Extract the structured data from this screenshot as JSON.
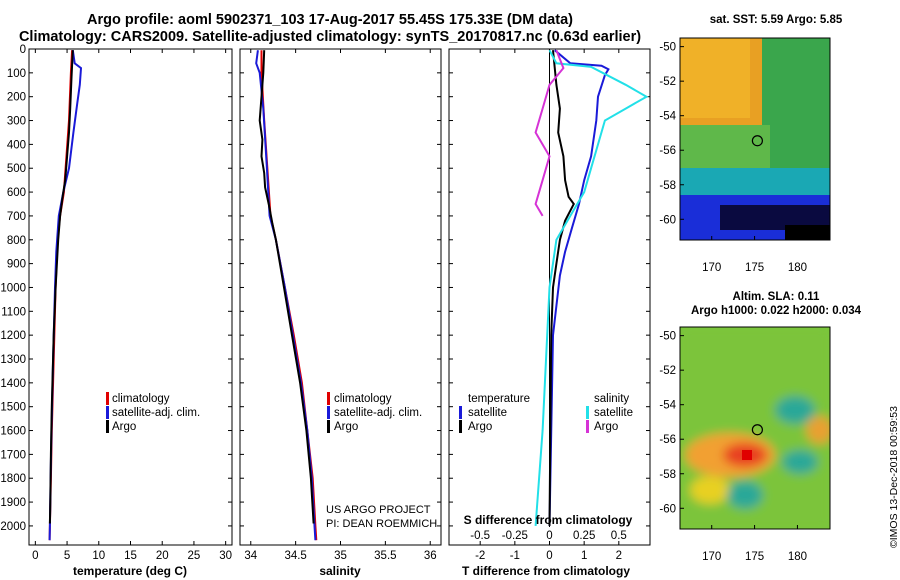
{
  "title_line1": "Argo profile: aoml 5902371_103 17-Aug-2017 55.45S 175.33E (DM data)",
  "title_line2": "Climatology: CARS2009. Satellite-adjusted climatology: synTS_20170817.nc (0.63d earlier)",
  "map_sst_title": "sat. SST: 5.59 Argo: 5.85",
  "map_sla_title1": "Altim. SLA: 0.11",
  "map_sla_title2": "Argo h1000: 0.022 h2000: 0.034",
  "credit_line1": "US ARGO PROJECT",
  "credit_line2": "PI: DEAN ROEMMICH",
  "timestamp": "©IMOS 13-Dec-2018 00:59:53",
  "colors": {
    "climatology": "#e00000",
    "satellite": "#1a1ad8",
    "argo": "#000000",
    "argo_s": "#d633d6",
    "sat_s": "#22e0e8"
  },
  "chart_data": [
    {
      "type": "line",
      "id": "temperature",
      "xlabel": "temperature (deg C)",
      "ylabel": "",
      "xlim": [
        -1,
        31
      ],
      "ylim": [
        2080,
        0
      ],
      "xticks": [
        0,
        5,
        10,
        15,
        20,
        25,
        30
      ],
      "yticks": [
        0,
        100,
        200,
        300,
        400,
        500,
        600,
        700,
        800,
        900,
        1000,
        1100,
        1200,
        1300,
        1400,
        1500,
        1600,
        1700,
        1800,
        1900,
        2000
      ],
      "legend": [
        "climatology",
        "satellite-adj. clim.",
        "Argo"
      ],
      "series": [
        {
          "name": "climatology",
          "points": [
            [
              5.8,
              5
            ],
            [
              5.6,
              100
            ],
            [
              5.3,
              300
            ],
            [
              4.5,
              600
            ],
            [
              3.9,
              700
            ],
            [
              3.5,
              800
            ],
            [
              3.2,
              1000
            ],
            [
              2.9,
              1300
            ],
            [
              2.6,
              1600
            ],
            [
              2.45,
              1800
            ],
            [
              2.3,
              2000
            ],
            [
              2.25,
              2060
            ]
          ]
        },
        {
          "name": "satellite-adj. clim.",
          "points": [
            [
              5.9,
              5
            ],
            [
              6.2,
              60
            ],
            [
              7.2,
              80
            ],
            [
              7.0,
              150
            ],
            [
              6.6,
              230
            ],
            [
              6.0,
              350
            ],
            [
              5.3,
              500
            ],
            [
              4.4,
              600
            ],
            [
              3.7,
              700
            ],
            [
              3.3,
              850
            ],
            [
              3.1,
              1000
            ],
            [
              2.8,
              1300
            ],
            [
              2.55,
              1600
            ],
            [
              2.4,
              1800
            ],
            [
              2.3,
              2000
            ],
            [
              2.25,
              2060
            ]
          ]
        },
        {
          "name": "Argo",
          "points": [
            [
              5.9,
              5
            ],
            [
              5.7,
              120
            ],
            [
              5.5,
              250
            ],
            [
              5.3,
              350
            ],
            [
              5.0,
              450
            ],
            [
              4.7,
              550
            ],
            [
              4.3,
              620
            ],
            [
              3.9,
              700
            ],
            [
              3.6,
              800
            ],
            [
              3.2,
              1000
            ],
            [
              2.9,
              1200
            ],
            [
              2.6,
              1500
            ],
            [
              2.45,
              1700
            ],
            [
              2.35,
              1900
            ],
            [
              2.3,
              1990
            ]
          ]
        }
      ]
    },
    {
      "type": "line",
      "id": "salinity",
      "xlabel": "salinity",
      "ylabel": "",
      "xlim": [
        33.88,
        36.12
      ],
      "ylim": [
        2080,
        0
      ],
      "xticks": [
        34,
        34.5,
        35,
        35.5,
        36
      ],
      "xticklabels": [
        "34",
        "34.5",
        "35",
        "35.5",
        "36"
      ],
      "legend": [
        "climatology",
        "satellite-adj. clim.",
        "Argo"
      ],
      "series": [
        {
          "name": "climatology",
          "points": [
            [
              34.12,
              5
            ],
            [
              34.12,
              100
            ],
            [
              34.15,
              300
            ],
            [
              34.22,
              700
            ],
            [
              34.28,
              800
            ],
            [
              34.38,
              1000
            ],
            [
              34.48,
              1200
            ],
            [
              34.57,
              1400
            ],
            [
              34.63,
              1600
            ],
            [
              34.69,
              1800
            ],
            [
              34.72,
              2000
            ],
            [
              34.73,
              2060
            ]
          ]
        },
        {
          "name": "satellite-adj. clim.",
          "points": [
            [
              34.08,
              5
            ],
            [
              34.06,
              60
            ],
            [
              34.1,
              100
            ],
            [
              34.14,
              250
            ],
            [
              34.18,
              500
            ],
            [
              34.21,
              700
            ],
            [
              34.28,
              800
            ],
            [
              34.38,
              1000
            ],
            [
              34.47,
              1200
            ],
            [
              34.56,
              1400
            ],
            [
              34.63,
              1600
            ],
            [
              34.68,
              1800
            ],
            [
              34.71,
              2000
            ],
            [
              34.72,
              2060
            ]
          ]
        },
        {
          "name": "Argo",
          "points": [
            [
              34.15,
              5
            ],
            [
              34.14,
              100
            ],
            [
              34.12,
              200
            ],
            [
              34.1,
              300
            ],
            [
              34.13,
              380
            ],
            [
              34.12,
              450
            ],
            [
              34.15,
              520
            ],
            [
              34.16,
              580
            ],
            [
              34.2,
              650
            ],
            [
              34.24,
              730
            ],
            [
              34.28,
              800
            ],
            [
              34.37,
              1000
            ],
            [
              34.46,
              1200
            ],
            [
              34.55,
              1400
            ],
            [
              34.62,
              1600
            ],
            [
              34.67,
              1800
            ],
            [
              34.7,
              1990
            ]
          ]
        }
      ]
    },
    {
      "type": "line",
      "id": "difference",
      "xlabel": "T difference from climatology",
      "xlabel2": "S difference from climatology",
      "xlim": [
        -2.9,
        2.9
      ],
      "ylim": [
        2080,
        0
      ],
      "xticks": [
        -2,
        -1,
        0,
        1,
        2
      ],
      "xticks2": [
        -0.5,
        -0.25,
        0,
        0.25,
        0.5
      ],
      "xticklabels2": [
        "-0.5",
        "-0.25",
        "0",
        "0.25",
        "0.5"
      ],
      "legend_left_title": "temperature",
      "legend_right_title": "salinity",
      "legend_left": [
        "satellite",
        "Argo"
      ],
      "legend_right": [
        "satellite",
        "Argo"
      ],
      "series": [
        {
          "name": "temperature satellite",
          "points": [
            [
              0.15,
              5
            ],
            [
              0.6,
              60
            ],
            [
              1.5,
              70
            ],
            [
              1.7,
              85
            ],
            [
              1.6,
              110
            ],
            [
              1.4,
              200
            ],
            [
              1.35,
              300
            ],
            [
              1.2,
              450
            ],
            [
              1.0,
              550
            ],
            [
              0.85,
              650
            ],
            [
              0.65,
              750
            ],
            [
              0.45,
              850
            ],
            [
              0.3,
              950
            ],
            [
              0.1,
              1200
            ],
            [
              0,
              2000
            ]
          ]
        },
        {
          "name": "temperature Argo",
          "points": [
            [
              0.1,
              5
            ],
            [
              0.2,
              150
            ],
            [
              0.3,
              250
            ],
            [
              0.25,
              350
            ],
            [
              0.4,
              450
            ],
            [
              0.45,
              550
            ],
            [
              0.55,
              620
            ],
            [
              0.7,
              650
            ],
            [
              0.45,
              720
            ],
            [
              0.3,
              800
            ],
            [
              0.2,
              900
            ],
            [
              0.1,
              1000
            ],
            [
              0.05,
              1200
            ],
            [
              0,
              2000
            ]
          ]
        },
        {
          "name": "salinity satellite",
          "points": [
            [
              0,
              5
            ],
            [
              0.05,
              60
            ],
            [
              0.3,
              75
            ],
            [
              0.55,
              150
            ],
            [
              0.7,
              200
            ],
            [
              0.55,
              250
            ],
            [
              0.4,
              300
            ],
            [
              0.35,
              400
            ],
            [
              0.3,
              500
            ],
            [
              0.25,
              600
            ],
            [
              0.15,
              700
            ],
            [
              0.05,
              800
            ],
            [
              0,
              1000
            ],
            [
              -0.05,
              1600
            ],
            [
              -0.1,
              2000
            ]
          ]
        },
        {
          "name": "salinity Argo",
          "points": [
            [
              0.05,
              5
            ],
            [
              0.1,
              80
            ],
            [
              0.0,
              150
            ],
            [
              -0.05,
              250
            ],
            [
              -0.1,
              350
            ],
            [
              0.0,
              450
            ],
            [
              -0.05,
              550
            ],
            [
              -0.1,
              650
            ],
            [
              -0.05,
              700
            ]
          ]
        }
      ]
    }
  ],
  "map_axes": {
    "xticks": [
      170,
      175,
      180
    ],
    "yticks": [
      -50,
      -52,
      -54,
      -56,
      -58,
      -60
    ],
    "xlim": [
      166.3,
      183.8
    ],
    "ylim": [
      -61.2,
      -49.5
    ],
    "argo_position": [
      175.33,
      -55.45
    ]
  }
}
